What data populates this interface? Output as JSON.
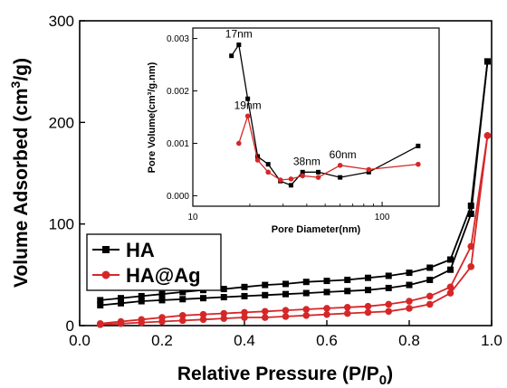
{
  "chart_data": [
    {
      "type": "line",
      "role": "main",
      "xlabel_main": "Relative Pressure (P/P",
      "xlabel_sub": "0",
      "xlabel_end": ")",
      "ylabel_main": "Volume Adsorbed (cm",
      "ylabel_sup": "3",
      "ylabel_end": "/g)",
      "xlim": [
        0,
        1.0
      ],
      "ylim": [
        0,
        300
      ],
      "x_ticks": [
        "0.0",
        "0.2",
        "0.4",
        "0.6",
        "0.8",
        "1.0"
      ],
      "y_ticks": [
        "0",
        "100",
        "200",
        "300"
      ],
      "legend_position": "left",
      "series": [
        {
          "name": "HA",
          "color": "#000000",
          "marker": "square",
          "adsorption": [
            [
              0.05,
              20
            ],
            [
              0.1,
              22
            ],
            [
              0.15,
              24
            ],
            [
              0.2,
              25
            ],
            [
              0.25,
              26
            ],
            [
              0.3,
              27
            ],
            [
              0.35,
              28
            ],
            [
              0.4,
              29
            ],
            [
              0.45,
              30
            ],
            [
              0.5,
              31
            ],
            [
              0.55,
              32
            ],
            [
              0.6,
              33
            ],
            [
              0.65,
              34
            ],
            [
              0.7,
              35
            ],
            [
              0.75,
              37
            ],
            [
              0.8,
              40
            ],
            [
              0.85,
              45
            ],
            [
              0.9,
              55
            ],
            [
              0.95,
              110
            ],
            [
              0.99,
              260
            ]
          ],
          "desorption": [
            [
              0.99,
              260
            ],
            [
              0.95,
              118
            ],
            [
              0.9,
              65
            ],
            [
              0.85,
              57
            ],
            [
              0.8,
              52
            ],
            [
              0.75,
              49
            ],
            [
              0.7,
              47
            ],
            [
              0.65,
              45
            ],
            [
              0.6,
              44
            ],
            [
              0.55,
              43
            ],
            [
              0.5,
              41
            ],
            [
              0.45,
              40
            ],
            [
              0.4,
              38
            ],
            [
              0.35,
              36
            ],
            [
              0.3,
              35
            ],
            [
              0.25,
              33
            ],
            [
              0.2,
              31
            ],
            [
              0.15,
              29
            ],
            [
              0.1,
              27
            ],
            [
              0.05,
              25
            ]
          ]
        },
        {
          "name": "HA@Ag",
          "color": "#d62728",
          "marker": "circle",
          "adsorption": [
            [
              0.05,
              1
            ],
            [
              0.1,
              2
            ],
            [
              0.15,
              3
            ],
            [
              0.2,
              4
            ],
            [
              0.25,
              5
            ],
            [
              0.3,
              6
            ],
            [
              0.35,
              7
            ],
            [
              0.4,
              8
            ],
            [
              0.45,
              8
            ],
            [
              0.5,
              9
            ],
            [
              0.55,
              10
            ],
            [
              0.6,
              11
            ],
            [
              0.65,
              12
            ],
            [
              0.7,
              13
            ],
            [
              0.75,
              14
            ],
            [
              0.8,
              17
            ],
            [
              0.85,
              21
            ],
            [
              0.9,
              32
            ],
            [
              0.95,
              58
            ],
            [
              0.99,
              187
            ]
          ],
          "desorption": [
            [
              0.99,
              187
            ],
            [
              0.95,
              78
            ],
            [
              0.9,
              38
            ],
            [
              0.85,
              29
            ],
            [
              0.8,
              24
            ],
            [
              0.75,
              21
            ],
            [
              0.7,
              19
            ],
            [
              0.65,
              18
            ],
            [
              0.6,
              17
            ],
            [
              0.55,
              16
            ],
            [
              0.5,
              15
            ],
            [
              0.45,
              14
            ],
            [
              0.4,
              13
            ],
            [
              0.35,
              12
            ],
            [
              0.3,
              11
            ],
            [
              0.25,
              10
            ],
            [
              0.2,
              8
            ],
            [
              0.15,
              6
            ],
            [
              0.1,
              4
            ],
            [
              0.05,
              2
            ]
          ]
        }
      ]
    },
    {
      "type": "line",
      "role": "inset",
      "xlabel": "Pore Diameter(nm)",
      "ylabel": "Pore Volume(cm³/g.nm)",
      "x_scale": "log",
      "xlim": [
        10,
        200
      ],
      "ylim": [
        -0.0002,
        0.0032
      ],
      "x_ticks": [
        {
          "value": 10,
          "label": "10"
        },
        {
          "value": 100,
          "label": "100"
        }
      ],
      "y_ticks": [
        {
          "value": 0,
          "label": "0.000"
        },
        {
          "value": 0.001,
          "label": "0.001"
        },
        {
          "value": 0.002,
          "label": "0.002"
        },
        {
          "value": 0.003,
          "label": "0.003"
        }
      ],
      "series": [
        {
          "name": "HA",
          "color": "#000000",
          "marker": "square",
          "points": [
            [
              16,
              0.00267
            ],
            [
              17.5,
              0.00288
            ],
            [
              19.5,
              0.00185
            ],
            [
              22,
              0.00075
            ],
            [
              25,
              0.0006
            ],
            [
              29,
              0.00028
            ],
            [
              33,
              0.0002
            ],
            [
              38,
              0.00045
            ],
            [
              46,
              0.00045
            ],
            [
              60,
              0.00035
            ],
            [
              85,
              0.00045
            ],
            [
              155,
              0.00095
            ]
          ]
        },
        {
          "name": "HA@Ag",
          "color": "#d62728",
          "marker": "circle",
          "points": [
            [
              17.5,
              0.001
            ],
            [
              19.5,
              0.00152
            ],
            [
              22,
              0.00068
            ],
            [
              25,
              0.00045
            ],
            [
              29,
              0.0003
            ],
            [
              33,
              0.00032
            ],
            [
              38,
              0.00038
            ],
            [
              46,
              0.00035
            ],
            [
              60,
              0.00058
            ],
            [
              85,
              0.0005
            ],
            [
              155,
              0.0006
            ]
          ]
        }
      ],
      "annotations": [
        {
          "text": "17nm",
          "x": 17.5,
          "y": 0.00288
        },
        {
          "text": "19nm",
          "x": 19.5,
          "y": 0.00152
        },
        {
          "text": "38nm",
          "x": 40,
          "y": 0.00045
        },
        {
          "text": "60nm",
          "x": 62,
          "y": 0.00058
        }
      ]
    }
  ]
}
